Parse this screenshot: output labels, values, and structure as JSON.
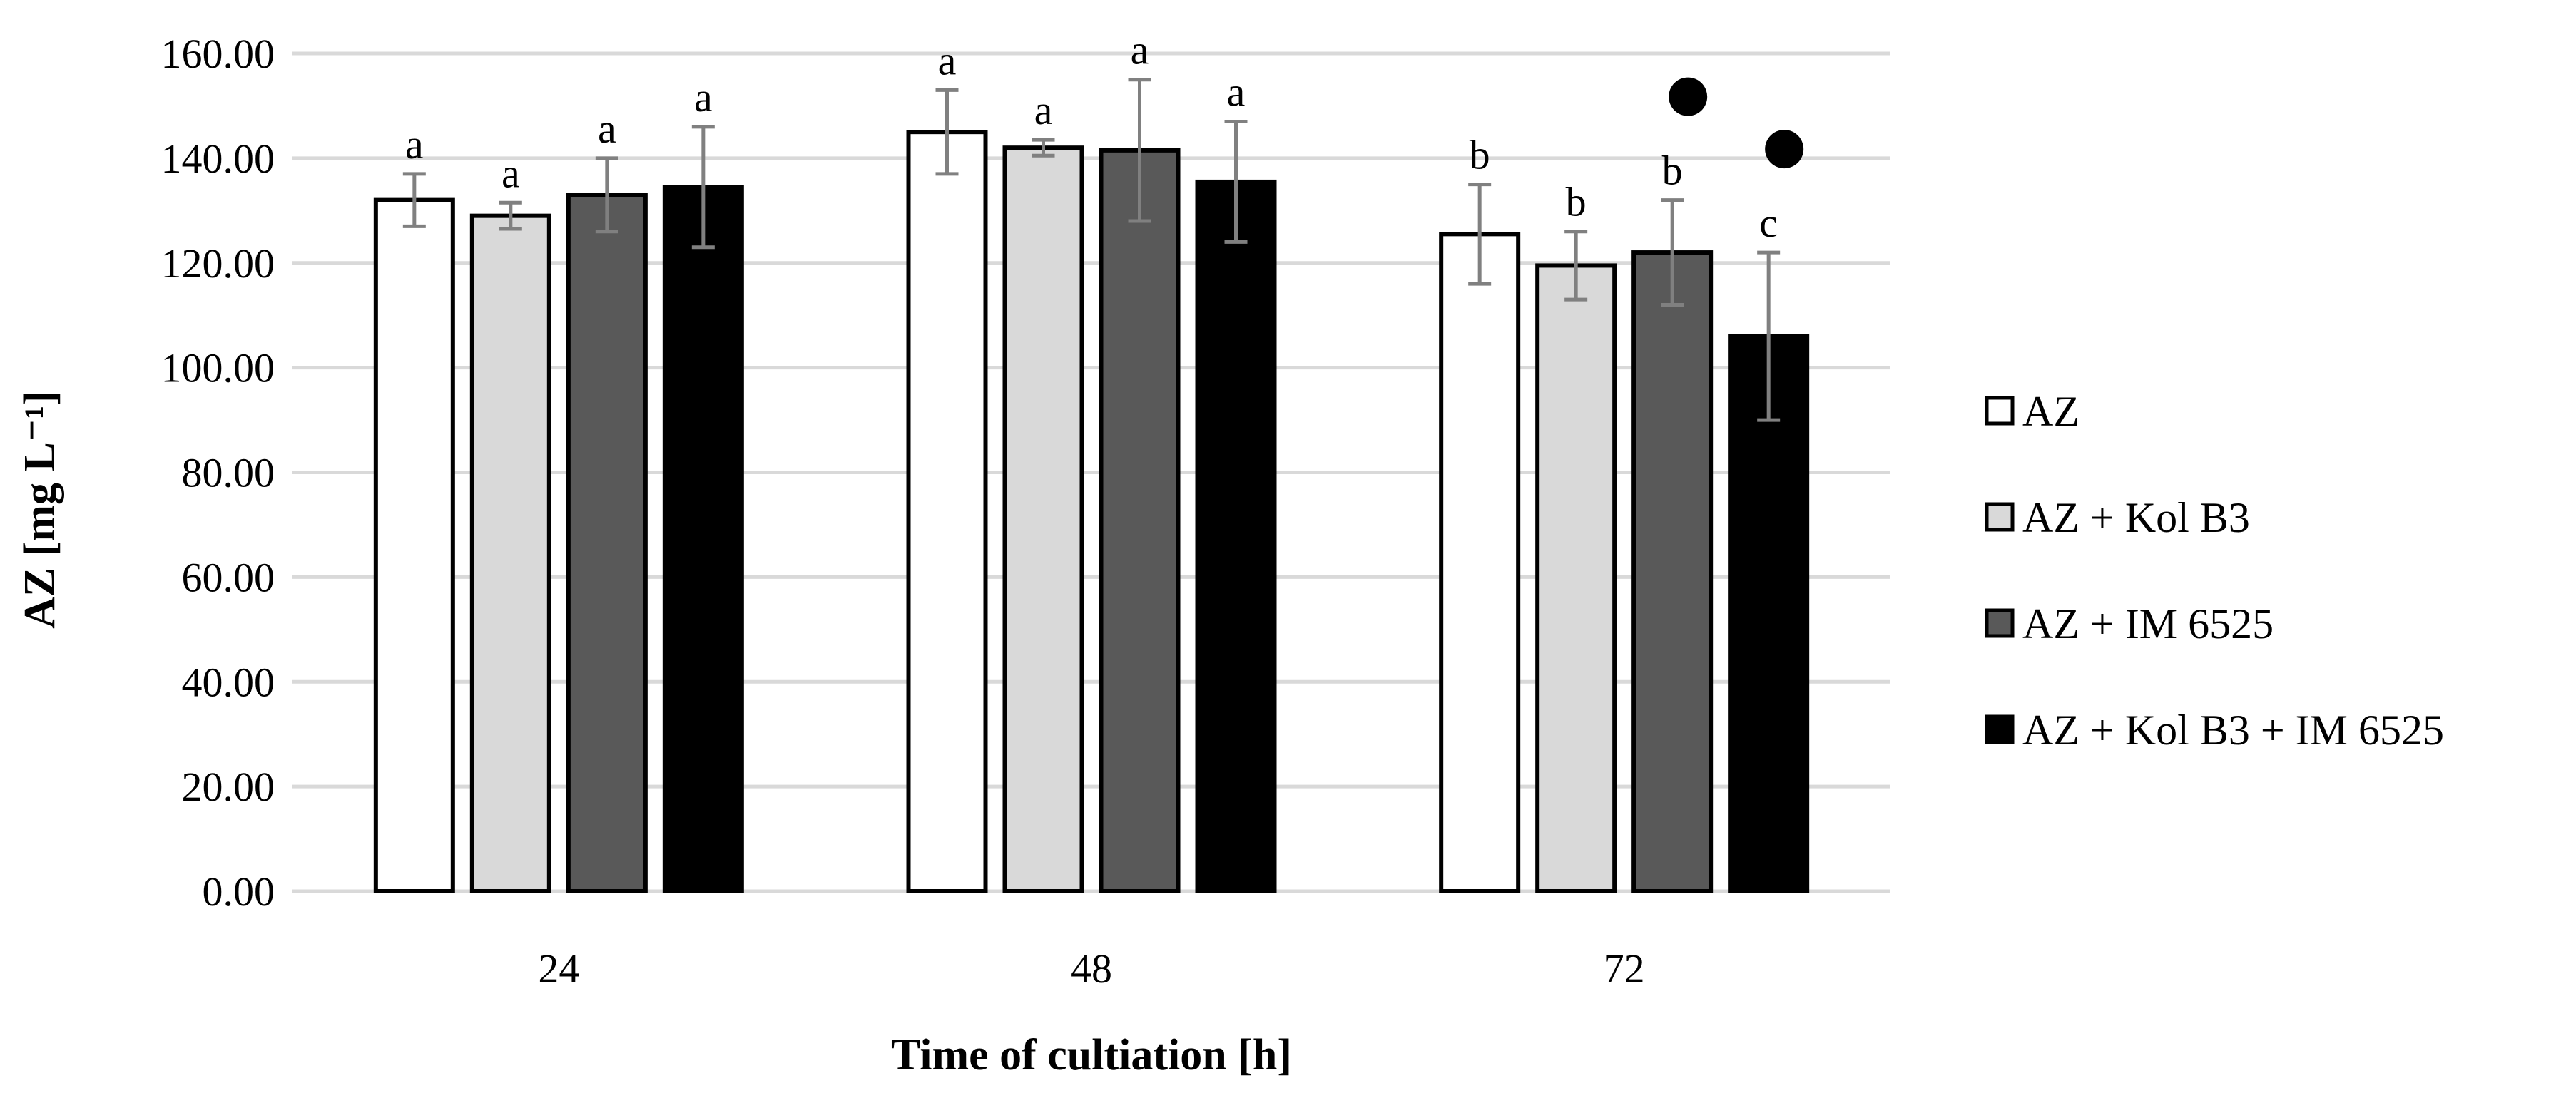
{
  "chart_data": {
    "type": "bar",
    "title": "",
    "xlabel": "Time of cultiation [h]",
    "ylabel": "AZ [mg L⁻¹]",
    "ylim": [
      0,
      160
    ],
    "yticks": [
      0,
      20,
      40,
      60,
      80,
      100,
      120,
      140,
      160
    ],
    "ytick_labels": [
      "0.00",
      "20.00",
      "40.00",
      "60.00",
      "80.00",
      "100.00",
      "120.00",
      "140.00",
      "160.00"
    ],
    "grid": "horizontal",
    "legend_position": "right",
    "categories": [
      "24",
      "48",
      "72"
    ],
    "series": [
      {
        "name": "AZ",
        "color": "#ffffff",
        "values": [
          132,
          145,
          125.5
        ],
        "errors": [
          5,
          8,
          9.5
        ],
        "labels": [
          "a",
          "a",
          "b"
        ],
        "markers": [
          false,
          false,
          false
        ]
      },
      {
        "name": "AZ + Kol B3",
        "color": "#d9d9d9",
        "values": [
          129,
          142,
          119.5
        ],
        "errors": [
          2.5,
          1.5,
          6.5
        ],
        "labels": [
          "a",
          "a",
          "b"
        ],
        "markers": [
          false,
          false,
          false
        ]
      },
      {
        "name": "AZ + IM 6525",
        "color": "#595959",
        "values": [
          133,
          141.5,
          122
        ],
        "errors": [
          7,
          13.5,
          10
        ],
        "labels": [
          "a",
          "a",
          "b"
        ],
        "markers": [
          false,
          false,
          true
        ]
      },
      {
        "name": "AZ + Kol B3 + IM 6525",
        "color": "#000000",
        "values": [
          134.5,
          135.5,
          106
        ],
        "errors": [
          11.5,
          11.5,
          16
        ],
        "labels": [
          "a",
          "a",
          "c"
        ],
        "markers": [
          false,
          false,
          true
        ]
      }
    ]
  }
}
